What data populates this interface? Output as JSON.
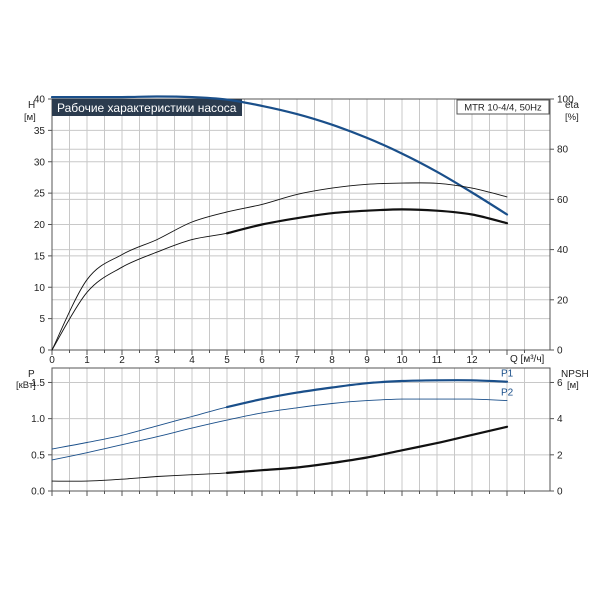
{
  "colors": {
    "blue": "#1a4f8a",
    "black": "#111111",
    "title_bg": "#2b3b4e",
    "grid": "#c8c8c8"
  },
  "chart_data": [
    {
      "type": "line",
      "title": "Рабочие характеристики насоса",
      "model": "MTR 10-4/4, 50Hz",
      "left_axis": {
        "label": "H",
        "unit": "[м]",
        "ticks": [
          "0",
          "5",
          "10",
          "15",
          "20",
          "25",
          "30",
          "35",
          "40"
        ],
        "range": [
          0,
          40
        ]
      },
      "right_axis": {
        "label": "eta",
        "unit": "[%]",
        "ticks": [
          "0",
          "20",
          "40",
          "60",
          "80",
          "100"
        ],
        "range": [
          0,
          100
        ]
      },
      "x_axis": {
        "ticks": [
          "0",
          "1",
          "2",
          "3",
          "4",
          "5",
          "6",
          "7",
          "8",
          "9",
          "10",
          "11",
          "12"
        ],
        "label": "Q [м³/ч]",
        "range": [
          0,
          14
        ]
      },
      "grid": true,
      "series": [
        {
          "axis": "left",
          "color": "blue",
          "weight": "thick",
          "start_x": 0,
          "x": [
            0,
            1,
            2,
            3,
            4,
            5,
            6,
            7,
            8,
            9,
            10,
            11,
            12,
            13
          ],
          "y": [
            40.3,
            40.3,
            40.3,
            40.4,
            40.3,
            39.9,
            38.9,
            37.6,
            35.9,
            33.8,
            31.3,
            28.4,
            25.1,
            21.6
          ]
        },
        {
          "axis": "right",
          "color": "black",
          "weight": "thin",
          "start_x": 0,
          "x": [
            0,
            1,
            2,
            3,
            4,
            5,
            6,
            7,
            8,
            9,
            10,
            11,
            12,
            13
          ],
          "y": [
            0,
            28,
            38,
            44,
            51,
            55,
            58,
            62,
            64.5,
            66,
            66.5,
            66.4,
            64.5,
            61
          ]
        },
        {
          "axis": "right",
          "color": "black",
          "weight": "thin",
          "start_x": 0,
          "x": [
            0,
            1,
            2,
            3,
            4,
            5,
            6,
            7,
            8,
            9,
            10,
            11,
            12,
            13
          ],
          "y": [
            0,
            23,
            33,
            39,
            44,
            46.5,
            50,
            52.5,
            54.5,
            55.5,
            56,
            55.5,
            54,
            50.5
          ]
        },
        {
          "axis": "right",
          "color": "black",
          "weight": "thick",
          "start_x": 5,
          "x": [
            5,
            6,
            7,
            8,
            9,
            10,
            11,
            12,
            13
          ],
          "y": [
            46.5,
            50,
            52.5,
            54.5,
            55.5,
            56,
            55.5,
            54,
            50.5
          ]
        }
      ]
    },
    {
      "type": "line",
      "left_axis": {
        "label": "P",
        "unit": "[кВт]",
        "ticks": [
          "0.0",
          "0.5",
          "1.0",
          "1.5"
        ],
        "range": [
          0,
          1.7
        ]
      },
      "right_axis": {
        "label": "NPSH",
        "unit": "[м]",
        "ticks": [
          "0",
          "2",
          "4",
          "6"
        ],
        "range": [
          0,
          6.8
        ]
      },
      "x_axis": {
        "range": [
          0,
          14
        ]
      },
      "grid": true,
      "series": [
        {
          "name": "P1",
          "axis": "left",
          "color": "blue",
          "weight": "thin",
          "start_x": 0,
          "x": [
            0,
            1,
            2,
            3,
            4,
            5,
            6,
            7,
            8,
            9,
            10,
            11,
            12,
            13
          ],
          "y": [
            0.58,
            0.67,
            0.77,
            0.9,
            1.03,
            1.16,
            1.27,
            1.36,
            1.43,
            1.49,
            1.52,
            1.53,
            1.53,
            1.51
          ]
        },
        {
          "name": "P1",
          "axis": "left",
          "color": "blue",
          "weight": "thick",
          "start_x": 5,
          "x": [
            5,
            6,
            7,
            8,
            9,
            10,
            11,
            12,
            13
          ],
          "y": [
            1.16,
            1.27,
            1.36,
            1.43,
            1.49,
            1.52,
            1.53,
            1.53,
            1.51
          ]
        },
        {
          "name": "P2",
          "axis": "left",
          "color": "blue",
          "weight": "thin",
          "start_x": 0,
          "x": [
            0,
            1,
            2,
            3,
            4,
            5,
            6,
            7,
            8,
            9,
            10,
            11,
            12,
            13
          ],
          "y": [
            0.43,
            0.53,
            0.64,
            0.75,
            0.87,
            0.98,
            1.08,
            1.15,
            1.21,
            1.25,
            1.27,
            1.27,
            1.27,
            1.25
          ]
        },
        {
          "axis": "right",
          "color": "black",
          "weight": "thin",
          "start_x": 0,
          "x": [
            0,
            1,
            2,
            3,
            4,
            5,
            6,
            7,
            8,
            9,
            10,
            11,
            12,
            13
          ],
          "y": [
            0.55,
            0.55,
            0.65,
            0.8,
            0.9,
            1.0,
            1.15,
            1.3,
            1.55,
            1.85,
            2.25,
            2.65,
            3.1,
            3.55
          ]
        },
        {
          "axis": "right",
          "color": "black",
          "weight": "thick",
          "start_x": 5,
          "x": [
            5,
            6,
            7,
            8,
            9,
            10,
            11,
            12,
            13
          ],
          "y": [
            1.0,
            1.15,
            1.3,
            1.55,
            1.85,
            2.25,
            2.65,
            3.1,
            3.55
          ]
        }
      ]
    }
  ]
}
